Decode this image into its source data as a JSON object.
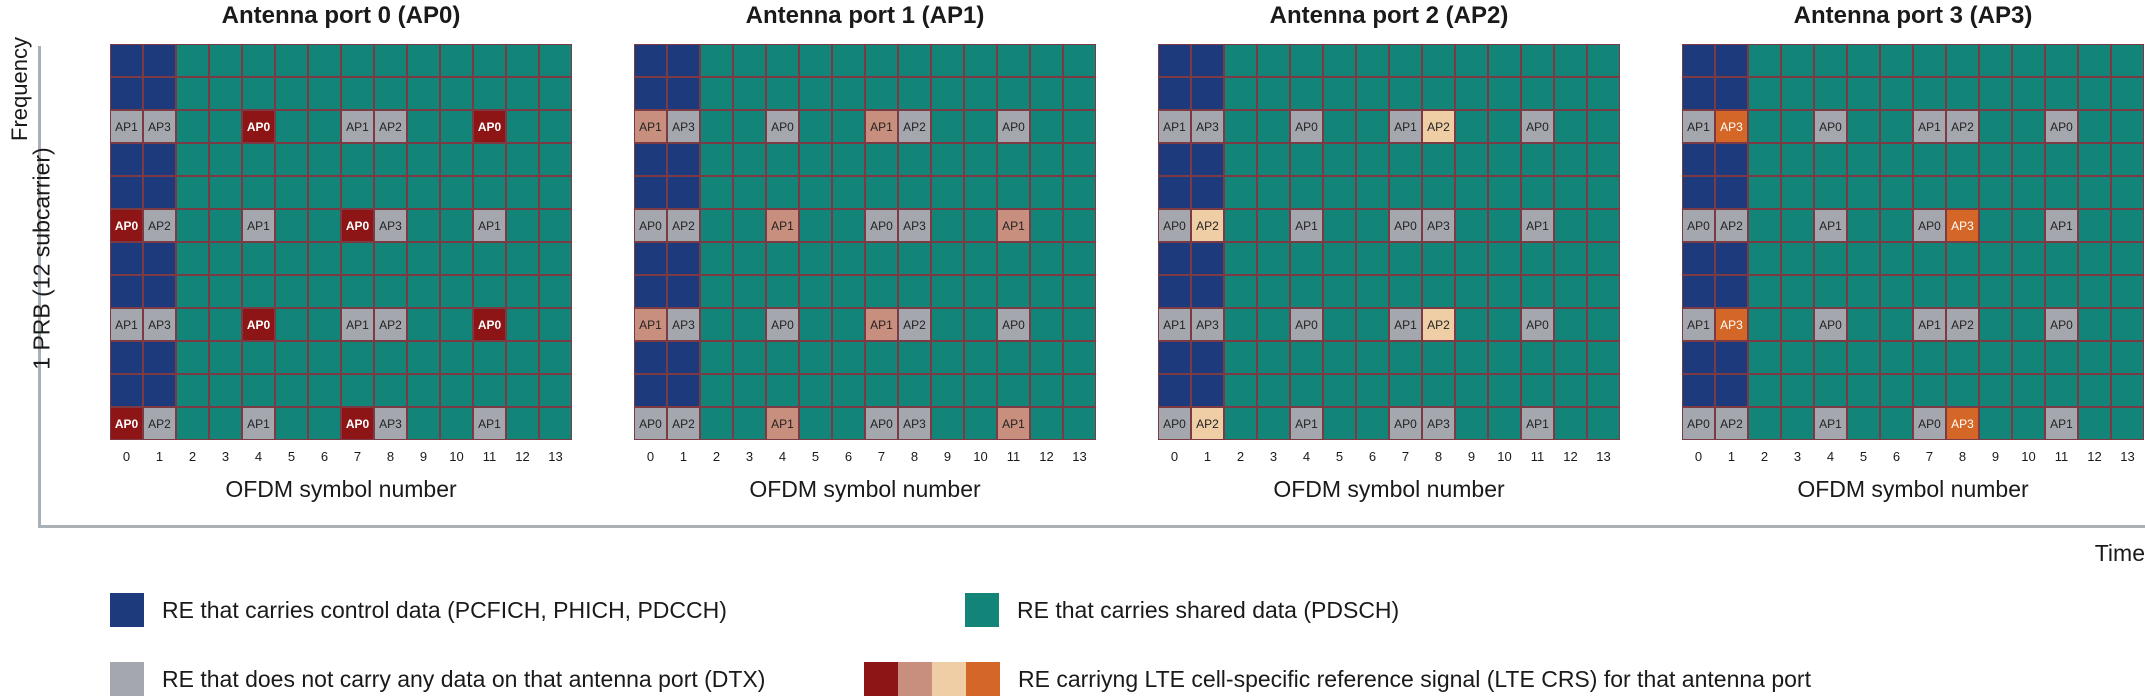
{
  "axes": {
    "y_label": "Frequency",
    "y_sublabel": "1 PRB (12 subcarrier)",
    "x_label": "Time",
    "x_axis_label": "OFDM symbol number",
    "symbol_numbers": [
      "0",
      "1",
      "2",
      "3",
      "4",
      "5",
      "6",
      "7",
      "8",
      "9",
      "10",
      "11",
      "12",
      "13"
    ]
  },
  "colors": {
    "control": "#1c3a7c",
    "shared": "#138478",
    "dtx": "#a4a8ae",
    "rs_ap0": "#8e1515",
    "rs_ap1": "#c98f7e",
    "rs_ap2": "#efcea6",
    "rs_ap3": "#d46727"
  },
  "panels": [
    {
      "title": "Antenna port 0 (AP0)",
      "port": 0,
      "grid": [
        [
          "C",
          "C",
          "S",
          "S",
          "S",
          "S",
          "S",
          "S",
          "S",
          "S",
          "S",
          "S",
          "S",
          "S"
        ],
        [
          "C",
          "C",
          "S",
          "S",
          "S",
          "S",
          "S",
          "S",
          "S",
          "S",
          "S",
          "S",
          "S",
          "S"
        ],
        [
          "D:AP1",
          "D:AP3",
          "S",
          "S",
          "R:AP0",
          "S",
          "S",
          "D:AP1",
          "D:AP2",
          "S",
          "S",
          "R:AP0",
          "S",
          "S"
        ],
        [
          "C",
          "C",
          "S",
          "S",
          "S",
          "S",
          "S",
          "S",
          "S",
          "S",
          "S",
          "S",
          "S",
          "S"
        ],
        [
          "C",
          "C",
          "S",
          "S",
          "S",
          "S",
          "S",
          "S",
          "S",
          "S",
          "S",
          "S",
          "S",
          "S"
        ],
        [
          "R:AP0",
          "D:AP2",
          "S",
          "S",
          "D:AP1",
          "S",
          "S",
          "R:AP0",
          "D:AP3",
          "S",
          "S",
          "D:AP1",
          "S",
          "S"
        ],
        [
          "C",
          "C",
          "S",
          "S",
          "S",
          "S",
          "S",
          "S",
          "S",
          "S",
          "S",
          "S",
          "S",
          "S"
        ],
        [
          "C",
          "C",
          "S",
          "S",
          "S",
          "S",
          "S",
          "S",
          "S",
          "S",
          "S",
          "S",
          "S",
          "S"
        ],
        [
          "D:AP1",
          "D:AP3",
          "S",
          "S",
          "R:AP0",
          "S",
          "S",
          "D:AP1",
          "D:AP2",
          "S",
          "S",
          "R:AP0",
          "S",
          "S"
        ],
        [
          "C",
          "C",
          "S",
          "S",
          "S",
          "S",
          "S",
          "S",
          "S",
          "S",
          "S",
          "S",
          "S",
          "S"
        ],
        [
          "C",
          "C",
          "S",
          "S",
          "S",
          "S",
          "S",
          "S",
          "S",
          "S",
          "S",
          "S",
          "S",
          "S"
        ],
        [
          "R:AP0",
          "D:AP2",
          "S",
          "S",
          "D:AP1",
          "S",
          "S",
          "R:AP0",
          "D:AP3",
          "S",
          "S",
          "D:AP1",
          "S",
          "S"
        ]
      ]
    },
    {
      "title": "Antenna port 1 (AP1)",
      "port": 1,
      "grid": [
        [
          "C",
          "C",
          "S",
          "S",
          "S",
          "S",
          "S",
          "S",
          "S",
          "S",
          "S",
          "S",
          "S",
          "S"
        ],
        [
          "C",
          "C",
          "S",
          "S",
          "S",
          "S",
          "S",
          "S",
          "S",
          "S",
          "S",
          "S",
          "S",
          "S"
        ],
        [
          "R:AP1",
          "D:AP3",
          "S",
          "S",
          "D:AP0",
          "S",
          "S",
          "R:AP1",
          "D:AP2",
          "S",
          "S",
          "D:AP0",
          "S",
          "S"
        ],
        [
          "C",
          "C",
          "S",
          "S",
          "S",
          "S",
          "S",
          "S",
          "S",
          "S",
          "S",
          "S",
          "S",
          "S"
        ],
        [
          "C",
          "C",
          "S",
          "S",
          "S",
          "S",
          "S",
          "S",
          "S",
          "S",
          "S",
          "S",
          "S",
          "S"
        ],
        [
          "D:AP0",
          "D:AP2",
          "S",
          "S",
          "R:AP1",
          "S",
          "S",
          "D:AP0",
          "D:AP3",
          "S",
          "S",
          "R:AP1",
          "S",
          "S"
        ],
        [
          "C",
          "C",
          "S",
          "S",
          "S",
          "S",
          "S",
          "S",
          "S",
          "S",
          "S",
          "S",
          "S",
          "S"
        ],
        [
          "C",
          "C",
          "S",
          "S",
          "S",
          "S",
          "S",
          "S",
          "S",
          "S",
          "S",
          "S",
          "S",
          "S"
        ],
        [
          "R:AP1",
          "D:AP3",
          "S",
          "S",
          "D:AP0",
          "S",
          "S",
          "R:AP1",
          "D:AP2",
          "S",
          "S",
          "D:AP0",
          "S",
          "S"
        ],
        [
          "C",
          "C",
          "S",
          "S",
          "S",
          "S",
          "S",
          "S",
          "S",
          "S",
          "S",
          "S",
          "S",
          "S"
        ],
        [
          "C",
          "C",
          "S",
          "S",
          "S",
          "S",
          "S",
          "S",
          "S",
          "S",
          "S",
          "S",
          "S",
          "S"
        ],
        [
          "D:AP0",
          "D:AP2",
          "S",
          "S",
          "R:AP1",
          "S",
          "S",
          "D:AP0",
          "D:AP3",
          "S",
          "S",
          "R:AP1",
          "S",
          "S"
        ]
      ]
    },
    {
      "title": "Antenna port 2 (AP2)",
      "port": 2,
      "grid": [
        [
          "C",
          "C",
          "S",
          "S",
          "S",
          "S",
          "S",
          "S",
          "S",
          "S",
          "S",
          "S",
          "S",
          "S"
        ],
        [
          "C",
          "C",
          "S",
          "S",
          "S",
          "S",
          "S",
          "S",
          "S",
          "S",
          "S",
          "S",
          "S",
          "S"
        ],
        [
          "D:AP1",
          "D:AP3",
          "S",
          "S",
          "D:AP0",
          "S",
          "S",
          "D:AP1",
          "R:AP2",
          "S",
          "S",
          "D:AP0",
          "S",
          "S"
        ],
        [
          "C",
          "C",
          "S",
          "S",
          "S",
          "S",
          "S",
          "S",
          "S",
          "S",
          "S",
          "S",
          "S",
          "S"
        ],
        [
          "C",
          "C",
          "S",
          "S",
          "S",
          "S",
          "S",
          "S",
          "S",
          "S",
          "S",
          "S",
          "S",
          "S"
        ],
        [
          "D:AP0",
          "R:AP2",
          "S",
          "S",
          "D:AP1",
          "S",
          "S",
          "D:AP0",
          "D:AP3",
          "S",
          "S",
          "D:AP1",
          "S",
          "S"
        ],
        [
          "C",
          "C",
          "S",
          "S",
          "S",
          "S",
          "S",
          "S",
          "S",
          "S",
          "S",
          "S",
          "S",
          "S"
        ],
        [
          "C",
          "C",
          "S",
          "S",
          "S",
          "S",
          "S",
          "S",
          "S",
          "S",
          "S",
          "S",
          "S",
          "S"
        ],
        [
          "D:AP1",
          "D:AP3",
          "S",
          "S",
          "D:AP0",
          "S",
          "S",
          "D:AP1",
          "R:AP2",
          "S",
          "S",
          "D:AP0",
          "S",
          "S"
        ],
        [
          "C",
          "C",
          "S",
          "S",
          "S",
          "S",
          "S",
          "S",
          "S",
          "S",
          "S",
          "S",
          "S",
          "S"
        ],
        [
          "C",
          "C",
          "S",
          "S",
          "S",
          "S",
          "S",
          "S",
          "S",
          "S",
          "S",
          "S",
          "S",
          "S"
        ],
        [
          "D:AP0",
          "R:AP2",
          "S",
          "S",
          "D:AP1",
          "S",
          "S",
          "D:AP0",
          "D:AP3",
          "S",
          "S",
          "D:AP1",
          "S",
          "S"
        ]
      ]
    },
    {
      "title": "Antenna port 3 (AP3)",
      "port": 3,
      "grid": [
        [
          "C",
          "C",
          "S",
          "S",
          "S",
          "S",
          "S",
          "S",
          "S",
          "S",
          "S",
          "S",
          "S",
          "S"
        ],
        [
          "C",
          "C",
          "S",
          "S",
          "S",
          "S",
          "S",
          "S",
          "S",
          "S",
          "S",
          "S",
          "S",
          "S"
        ],
        [
          "D:AP1",
          "R:AP3",
          "S",
          "S",
          "D:AP0",
          "S",
          "S",
          "D:AP1",
          "D:AP2",
          "S",
          "S",
          "D:AP0",
          "S",
          "S"
        ],
        [
          "C",
          "C",
          "S",
          "S",
          "S",
          "S",
          "S",
          "S",
          "S",
          "S",
          "S",
          "S",
          "S",
          "S"
        ],
        [
          "C",
          "C",
          "S",
          "S",
          "S",
          "S",
          "S",
          "S",
          "S",
          "S",
          "S",
          "S",
          "S",
          "S"
        ],
        [
          "D:AP0",
          "D:AP2",
          "S",
          "S",
          "D:AP1",
          "S",
          "S",
          "D:AP0",
          "R:AP3",
          "S",
          "S",
          "D:AP1",
          "S",
          "S"
        ],
        [
          "C",
          "C",
          "S",
          "S",
          "S",
          "S",
          "S",
          "S",
          "S",
          "S",
          "S",
          "S",
          "S",
          "S"
        ],
        [
          "C",
          "C",
          "S",
          "S",
          "S",
          "S",
          "S",
          "S",
          "S",
          "S",
          "S",
          "S",
          "S",
          "S"
        ],
        [
          "D:AP1",
          "R:AP3",
          "S",
          "S",
          "D:AP0",
          "S",
          "S",
          "D:AP1",
          "D:AP2",
          "S",
          "S",
          "D:AP0",
          "S",
          "S"
        ],
        [
          "C",
          "C",
          "S",
          "S",
          "S",
          "S",
          "S",
          "S",
          "S",
          "S",
          "S",
          "S",
          "S",
          "S"
        ],
        [
          "C",
          "C",
          "S",
          "S",
          "S",
          "S",
          "S",
          "S",
          "S",
          "S",
          "S",
          "S",
          "S",
          "S"
        ],
        [
          "D:AP0",
          "D:AP2",
          "S",
          "S",
          "D:AP1",
          "S",
          "S",
          "D:AP0",
          "R:AP3",
          "S",
          "S",
          "D:AP1",
          "S",
          "S"
        ]
      ]
    }
  ],
  "legend": {
    "control": "RE that carries control data (PCFICH, PHICH, PDCCH)",
    "shared": "RE that carries shared data (PDSCH)",
    "dtx": "RE that does not carry any data on that antenna port (DTX)",
    "crs": "RE carriyng LTE cell-specific reference signal (LTE CRS) for that antenna port"
  }
}
